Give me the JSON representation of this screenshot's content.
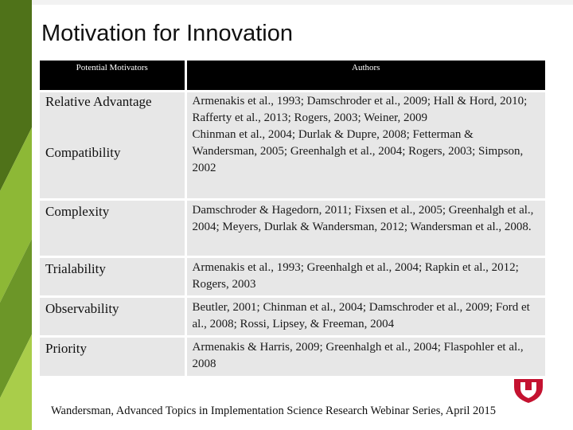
{
  "slide": {
    "title": "Motivation for Innovation",
    "footer": "Wandersman, Advanced Topics in Implementation Science Research Webinar Series, April 2015"
  },
  "table": {
    "headers": {
      "motivators": "Potential Motivators",
      "authors": "Authors"
    },
    "rows": [
      {
        "labels": [
          "Relative Advantage",
          "Compatibility"
        ],
        "authors": [
          "Armenakis et al., 1993; Damschroder et al., 2009; Hall & Hord, 2010; Rafferty et al., 2013; Rogers, 2003; Weiner, 2009",
          "Chinman et al., 2004; Durlak & Dupre, 2008; Fetterman & Wandersman, 2005;  Greenhalgh et al., 2004; Rogers, 2003; Simpson, 2002"
        ]
      },
      {
        "labels": [
          "Complexity"
        ],
        "authors": [
          "Damschroder & Hagedorn, 2011; Fixsen et al., 2005; Greenhalgh et al., 2004; Meyers, Durlak & Wandersman, 2012; Wandersman et al., 2008."
        ]
      },
      {
        "labels": [
          "Trialability"
        ],
        "authors": [
          "Armenakis et al., 1993; Greenhalgh et al., 2004; Rapkin et al., 2012; Rogers, 2003"
        ]
      },
      {
        "labels": [
          "Observability"
        ],
        "authors": [
          "Beutler, 2001; Chinman et al., 2004; Damschroder et al., 2009; Ford et al., 2008; Rossi, Lipsey, & Freeman, 2004"
        ]
      },
      {
        "labels": [
          "Priority"
        ],
        "authors": [
          "Armenakis & Harris, 2009; Greenhalgh et al., 2004; Flaspohler et al., 2008"
        ]
      }
    ]
  },
  "colors": {
    "header_bg": "#000000",
    "row_bg": "#e7e7e7",
    "accent_dark": "#5a7d1e",
    "accent_light": "#9cc23c",
    "logo": "#c41230"
  }
}
